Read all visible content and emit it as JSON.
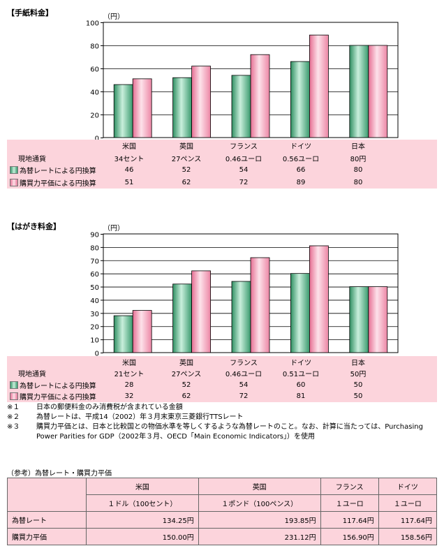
{
  "chart_data": [
    {
      "type": "bar",
      "title": "【手紙料金】",
      "unit": "（円）",
      "ylim": [
        0,
        100
      ],
      "yticks": [
        0,
        20,
        40,
        60,
        80,
        100
      ],
      "categories": [
        "米国",
        "英国",
        "フランス",
        "ドイツ",
        "日本"
      ],
      "local_currency_label": "現地通貨",
      "local_currency": [
        "34セント",
        "27ペンス",
        "0.46ユーロ",
        "0.56ユーロ",
        "80円"
      ],
      "series": [
        {
          "name": "為替レートによる円換算",
          "values": [
            46,
            52,
            54,
            66,
            80
          ]
        },
        {
          "name": "購買力平価による円換算",
          "values": [
            51,
            62,
            72,
            89,
            80
          ]
        }
      ]
    },
    {
      "type": "bar",
      "title": "【はがき料金】",
      "unit": "（円）",
      "ylim": [
        0,
        90
      ],
      "yticks": [
        0,
        10,
        20,
        30,
        40,
        50,
        60,
        70,
        80,
        90
      ],
      "categories": [
        "米国",
        "英国",
        "フランス",
        "ドイツ",
        "日本"
      ],
      "local_currency_label": "現地通貨",
      "local_currency": [
        "21セント",
        "27ペンス",
        "0.46ユーロ",
        "0.51ユーロ",
        "50円"
      ],
      "series": [
        {
          "name": "為替レートによる円換算",
          "values": [
            28,
            52,
            54,
            60,
            50
          ]
        },
        {
          "name": "購買力平価による円換算",
          "values": [
            32,
            62,
            72,
            81,
            50
          ]
        }
      ]
    }
  ],
  "colors": {
    "exchange": "#5ab48a",
    "ppp": "#f4a4bc",
    "table_bg": "#fcd4dc"
  },
  "notes": [
    {
      "mark": "※１",
      "text": "日本の郵便料金のみ消費税が含まれている金額"
    },
    {
      "mark": "※２",
      "text": "為替レートは、平成14（2002）年３月末東京三菱銀行TTSレート"
    },
    {
      "mark": "※３",
      "text": "購買力平価とは、日本と比較国との物価水準を等しくするような為替レートのこと。なお、計算に当たっては、Purchasing Power Parities for GDP（2002年３月、OECD「Main Economic Indicators」）を使用"
    }
  ],
  "reference": {
    "title": "（参考）為替レート・購買力平価",
    "countries": [
      "米国",
      "英国",
      "フランス",
      "ドイツ"
    ],
    "units": [
      "１ドル（100セント）",
      "１ポンド（100ペンス）",
      "１ユーロ",
      "１ユーロ"
    ],
    "rows": [
      {
        "label": "為替レート",
        "values": [
          "134.25円",
          "193.85円",
          "117.64円",
          "117.64円"
        ]
      },
      {
        "label": "購買力平価",
        "values": [
          "150.00円",
          "231.12円",
          "156.90円",
          "158.56円"
        ]
      }
    ]
  }
}
